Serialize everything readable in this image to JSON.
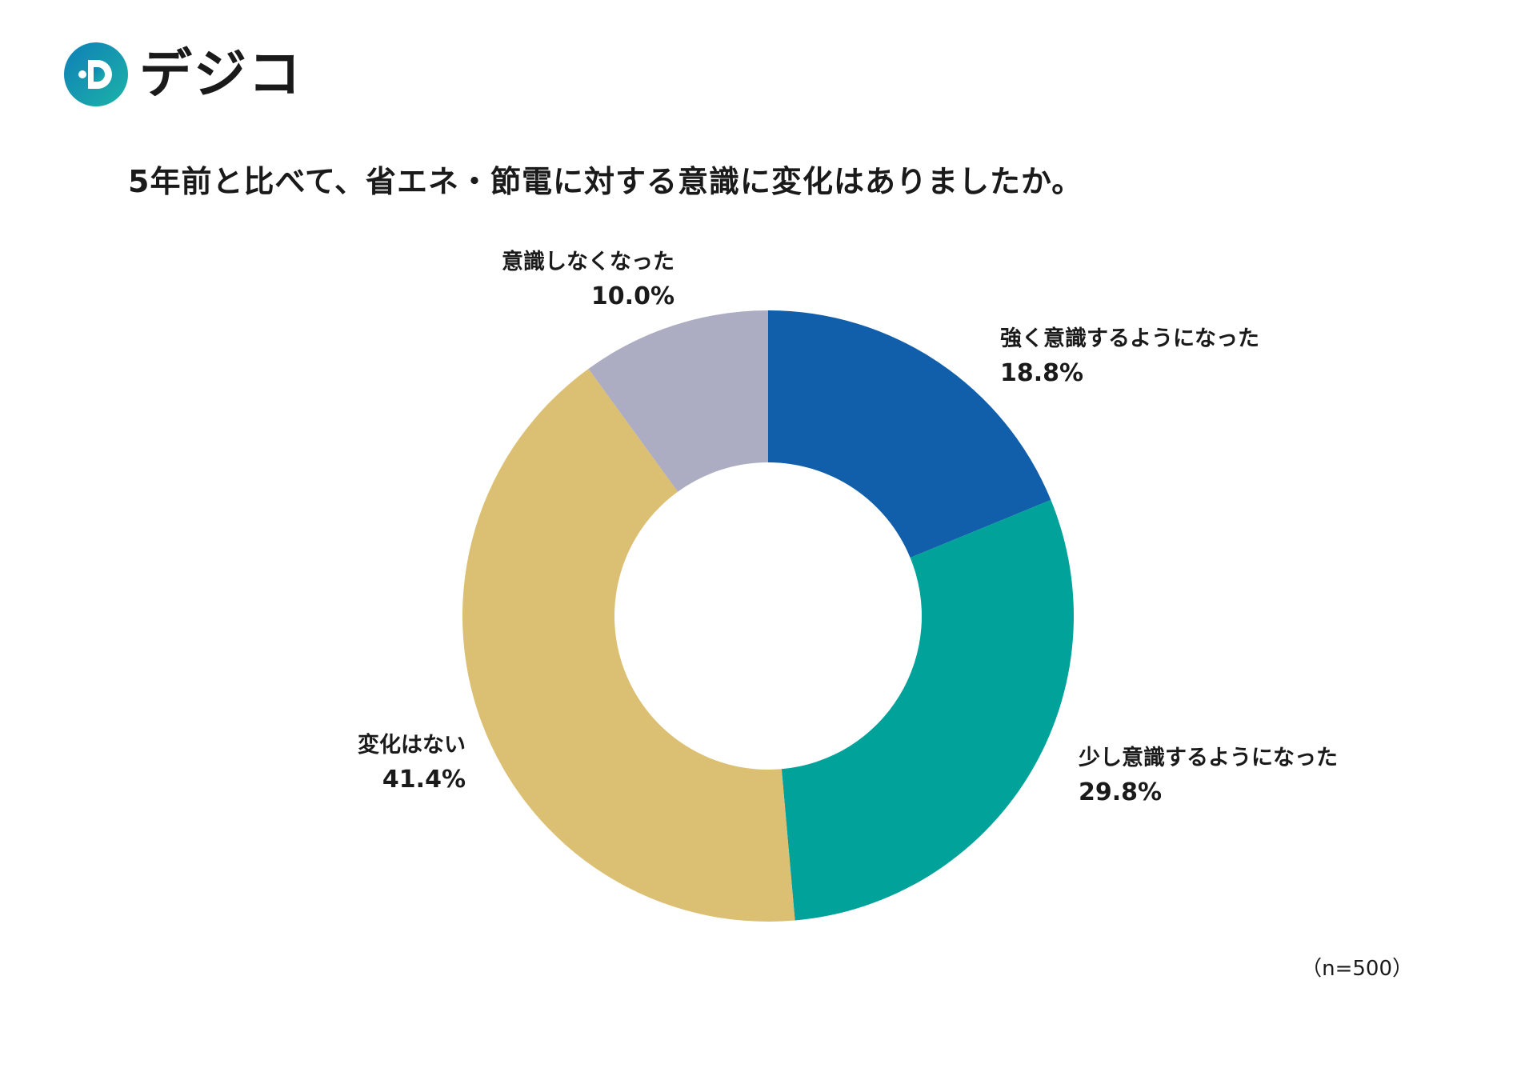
{
  "logo": {
    "text": "デジコ",
    "colors": {
      "ring_start": "#0e7fb8",
      "ring_end": "#1db3a6",
      "dots": "#1a5fb4"
    }
  },
  "title": "5年前と比べて、省エネ・節電に対する意識に変化はありましたか。",
  "note": "（n=500）",
  "chart_data": {
    "type": "pie",
    "donut": true,
    "title": "5年前と比べて、省エネ・節電に対する意識に変化はありましたか。",
    "n": 500,
    "categories": [
      "強く意識するようになった",
      "少し意識するようになった",
      "変化はない",
      "意識しなくなった"
    ],
    "values": [
      18.8,
      29.8,
      41.4,
      10.0
    ],
    "value_labels": [
      "18.8%",
      "29.8%",
      "41.4%",
      "10.0%"
    ],
    "colors": [
      "#115eaa",
      "#00a29a",
      "#dbbf72",
      "#acacc3"
    ],
    "start": "12 o'clock",
    "direction": "clockwise"
  }
}
